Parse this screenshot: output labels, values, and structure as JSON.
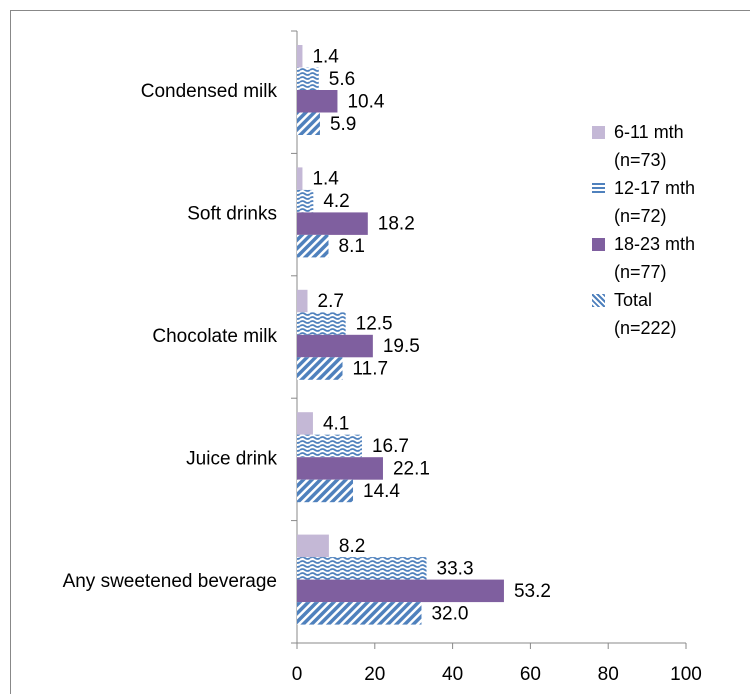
{
  "chart_data": {
    "type": "hbar",
    "categories": [
      "Condensed milk",
      "Soft drinks",
      "Chocolate milk",
      "Juice drink",
      "Any sweetened beverage"
    ],
    "series": [
      {
        "name": "6-11 mth (n=73)",
        "color": "#c4b8d6",
        "pattern": "solid",
        "values": [
          1.4,
          1.4,
          2.7,
          4.1,
          8.2
        ],
        "value_labels": [
          "1.4",
          "1.4",
          "2.7",
          "4.1",
          "8.2"
        ]
      },
      {
        "name": "12-17 mth (n=72)",
        "color": "#4f81bd",
        "pattern": "wave",
        "values": [
          5.6,
          4.2,
          12.5,
          16.7,
          33.3
        ],
        "value_labels": [
          "5.6",
          "4.2",
          "12.5",
          "16.7",
          "33.3"
        ]
      },
      {
        "name": "18-23 mth (n=77)",
        "color": "#7f5f9f",
        "pattern": "solid",
        "values": [
          10.4,
          18.2,
          19.5,
          22.1,
          53.2
        ],
        "value_labels": [
          "10.4",
          "18.2",
          "19.5",
          "22.1",
          "53.2"
        ]
      },
      {
        "name": "Total (n=222)",
        "color": "#4f81bd",
        "pattern": "diagonal",
        "values": [
          5.9,
          8.1,
          11.7,
          14.4,
          32.0
        ],
        "value_labels": [
          "5.9",
          "8.1",
          "11.7",
          "14.4",
          "32.0"
        ]
      }
    ],
    "xlim": [
      0,
      100
    ],
    "xticks": [
      0,
      20,
      40,
      60,
      80,
      100
    ]
  }
}
